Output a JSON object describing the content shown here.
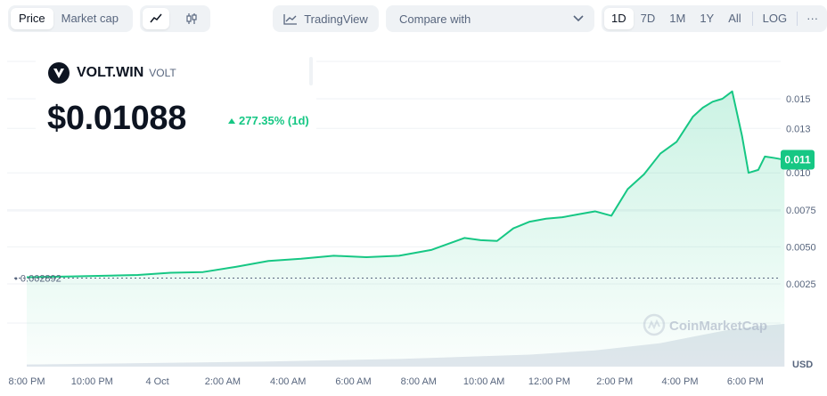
{
  "toolbar": {
    "price_tab": "Price",
    "marketcap_tab": "Market cap",
    "line_icon": "line-chart-icon",
    "candle_icon": "candlestick-icon",
    "tradingview_label": "TradingView",
    "compare_label": "Compare with",
    "ranges": [
      "1D",
      "7D",
      "1M",
      "1Y",
      "All"
    ],
    "active_range": "1D",
    "log_label": "LOG",
    "more_label": "···"
  },
  "coin": {
    "name": "VOLT.WIN",
    "symbol": "VOLT",
    "price": "$0.01088",
    "change": "277.35% (1d)"
  },
  "watermark": "CoinMarketCap",
  "colors": {
    "line": "#16c784",
    "price_tag": "#16c784",
    "text": "#0d1421",
    "muted": "#58667e"
  },
  "chart_data": {
    "type": "area",
    "title": "",
    "xlabel": "",
    "ylabel": "",
    "currency_label": "USD",
    "ylim": [
      0.0,
      0.0165
    ],
    "y_ticks": [
      "0.0025",
      "0.0050",
      "0.0075",
      "0.010",
      "0.013",
      "0.015"
    ],
    "x_ticks": [
      "8:00 PM",
      "10:00 PM",
      "4 Oct",
      "2:00 AM",
      "4:00 AM",
      "6:00 AM",
      "8:00 AM",
      "10:00 AM",
      "12:00 PM",
      "2:00 PM",
      "4:00 PM",
      "6:00 PM"
    ],
    "x_tick_hours": [
      0,
      2,
      4,
      6,
      8,
      10,
      12,
      14,
      16,
      18,
      20,
      22
    ],
    "open_price_label": "0.002892",
    "open_price": 0.002892,
    "current_price_label": "0.011",
    "current_price": 0.01088,
    "series": [
      {
        "x": [
          0.6,
          2,
          4,
          5,
          6,
          7,
          8,
          9,
          10,
          11,
          12,
          13,
          14,
          14.5,
          15,
          15.5,
          16,
          16.5,
          17,
          17.5,
          18,
          18.5,
          19,
          19.5,
          20,
          20.5,
          21,
          21.3,
          21.6,
          21.9,
          22.2,
          22.5,
          22.7,
          23.0,
          23.2,
          23.5,
          23.8
        ],
        "y": [
          0.00295,
          0.003,
          0.0031,
          0.00325,
          0.0033,
          0.00365,
          0.00405,
          0.0042,
          0.0044,
          0.0043,
          0.0044,
          0.0048,
          0.0056,
          0.00545,
          0.0054,
          0.00625,
          0.0067,
          0.0069,
          0.007,
          0.0072,
          0.0074,
          0.0071,
          0.0089,
          0.0099,
          0.0113,
          0.0121,
          0.0138,
          0.0144,
          0.0148,
          0.015,
          0.0155,
          0.0125,
          0.01,
          0.0102,
          0.0111,
          0.011,
          0.01088
        ]
      }
    ],
    "volume": {
      "x": [
        0.6,
        4,
        8,
        12,
        16,
        18,
        20,
        21,
        22,
        23,
        23.8
      ],
      "relative": [
        0.05,
        0.08,
        0.12,
        0.18,
        0.28,
        0.38,
        0.55,
        0.7,
        0.85,
        0.95,
        1.0
      ]
    },
    "grid": true,
    "legend": "none"
  }
}
